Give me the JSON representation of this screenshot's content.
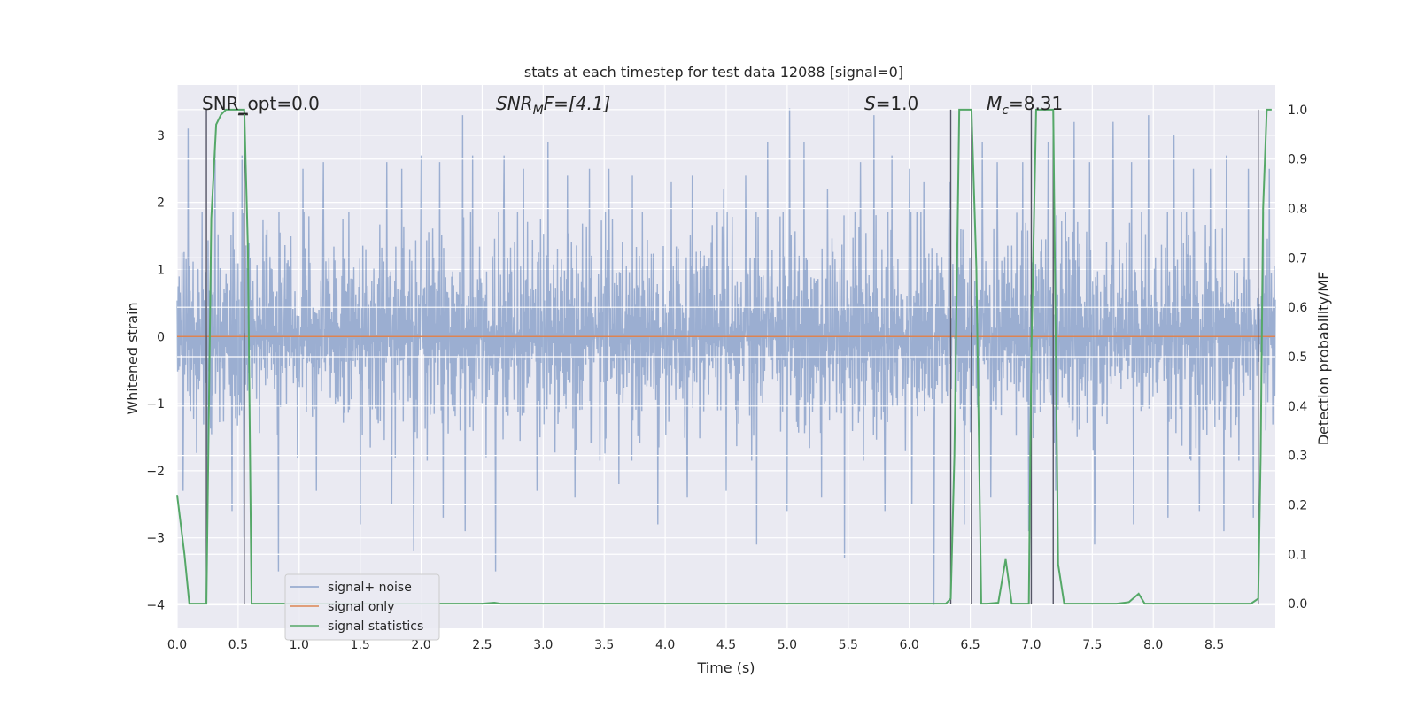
{
  "chart_data": {
    "type": "line",
    "title": "stats at each timestep for test data 12088 [signal=0]",
    "xlabel": "Time (s)",
    "ylabel_left": "Whitened strain",
    "ylabel_right": "Detection probability/MF",
    "xlim": [
      0.0,
      9.0
    ],
    "ylim_left": [
      -4.35,
      3.75
    ],
    "ylim_right": [
      -0.05,
      1.05
    ],
    "x_ticks": [
      "0.0",
      "0.5",
      "1.0",
      "1.5",
      "2.0",
      "2.5",
      "3.0",
      "3.5",
      "4.0",
      "4.5",
      "5.0",
      "5.5",
      "6.0",
      "6.5",
      "7.0",
      "7.5",
      "8.0",
      "8.5"
    ],
    "y_ticks_left": [
      "−4",
      "−3",
      "−2",
      "−1",
      "0",
      "1",
      "2",
      "3"
    ],
    "y_ticks_right": [
      "0.0",
      "0.1",
      "0.2",
      "0.3",
      "0.4",
      "0.5",
      "0.6",
      "0.7",
      "0.8",
      "0.9",
      "1.0"
    ],
    "grid": true,
    "legend_position": "lower-left",
    "annotations": {
      "snr_opt": "SNR_opt=0.0",
      "snr_mf_main": "SNR",
      "snr_mf_sub": "M",
      "snr_mf_rest": "F=[4.1]",
      "s_main": "S",
      "s_rest": "=1.0",
      "mc_main": "M",
      "mc_sub": "c",
      "mc_rest": "=8.31"
    },
    "series": [
      {
        "name": "signal+ noise",
        "color": "#4c72b0",
        "note_values": "dense whitened noise, amplitude roughly within ±2 with spikes to ±3.4"
      },
      {
        "name": "signal only",
        "color": "#dd8452",
        "values_constant": 0.0
      },
      {
        "name": "signal statistics",
        "color": "#55a868",
        "x": [
          0.0,
          0.06,
          0.1,
          0.2,
          0.24,
          0.28,
          0.32,
          0.36,
          0.4,
          0.5,
          0.55,
          0.58,
          0.61,
          0.65,
          0.8,
          1.0,
          2.0,
          2.5,
          2.6,
          2.65,
          2.7,
          3.0,
          4.0,
          5.0,
          6.0,
          6.3,
          6.34,
          6.37,
          6.41,
          6.44,
          6.51,
          6.55,
          6.59,
          6.64,
          6.73,
          6.79,
          6.84,
          6.89,
          6.93,
          6.98,
          7.0,
          7.04,
          7.07,
          7.18,
          7.22,
          7.27,
          7.32,
          7.4,
          7.5,
          7.7,
          7.8,
          7.88,
          7.93,
          7.98,
          8.1,
          8.5,
          8.8,
          8.86,
          8.88,
          8.9,
          8.93,
          8.97
        ],
        "values": [
          0.22,
          0.1,
          0.0,
          0.0,
          0.0,
          0.78,
          0.97,
          0.99,
          1.0,
          1.0,
          1.0,
          0.72,
          0.0,
          0.0,
          0.0,
          0.0,
          0.0,
          0.0,
          0.002,
          0.0,
          0.0,
          0.0,
          0.0,
          0.0,
          0.0,
          0.0,
          0.01,
          0.3,
          1.0,
          1.0,
          1.0,
          0.68,
          0.0,
          0.0,
          0.002,
          0.09,
          0.0,
          0.0,
          0.0,
          0.0,
          0.5,
          1.0,
          1.0,
          1.0,
          0.08,
          0.0,
          0.0,
          0.0,
          0.0,
          0.0,
          0.003,
          0.02,
          0.0,
          0.0,
          0.0,
          0.0,
          0.0,
          0.01,
          0.3,
          0.8,
          1.0,
          1.0
        ]
      }
    ],
    "vertical_markers": [
      0.24,
      0.55,
      6.34,
      6.51,
      7.0,
      7.18,
      8.86
    ],
    "noise_peaks": [
      {
        "x": 0.09,
        "v": 3.1
      },
      {
        "x": 0.31,
        "v": 2.9
      },
      {
        "x": 0.53,
        "v": 2.7
      },
      {
        "x": 1.03,
        "v": 2.5
      },
      {
        "x": 1.2,
        "v": 2.6
      },
      {
        "x": 1.5,
        "v": 2.5
      },
      {
        "x": 1.72,
        "v": 2.6
      },
      {
        "x": 1.84,
        "v": 2.5
      },
      {
        "x": 2.0,
        "v": 2.7
      },
      {
        "x": 2.15,
        "v": 2.6
      },
      {
        "x": 2.34,
        "v": 3.3
      },
      {
        "x": 2.42,
        "v": 2.7
      },
      {
        "x": 2.68,
        "v": 2.7
      },
      {
        "x": 2.84,
        "v": 2.5
      },
      {
        "x": 3.04,
        "v": 2.9
      },
      {
        "x": 3.2,
        "v": 2.4
      },
      {
        "x": 3.38,
        "v": 2.5
      },
      {
        "x": 3.54,
        "v": 2.5
      },
      {
        "x": 3.73,
        "v": 2.4
      },
      {
        "x": 4.05,
        "v": 2.3
      },
      {
        "x": 4.22,
        "v": 2.4
      },
      {
        "x": 4.48,
        "v": 2.2
      },
      {
        "x": 4.66,
        "v": 2.4
      },
      {
        "x": 4.84,
        "v": 2.9
      },
      {
        "x": 5.02,
        "v": 3.4
      },
      {
        "x": 5.14,
        "v": 2.9
      },
      {
        "x": 5.33,
        "v": 2.2
      },
      {
        "x": 5.6,
        "v": 2.6
      },
      {
        "x": 5.71,
        "v": 3.3
      },
      {
        "x": 5.86,
        "v": 2.7
      },
      {
        "x": 6.0,
        "v": 2.5
      },
      {
        "x": 6.12,
        "v": 2.3
      },
      {
        "x": 6.33,
        "v": 2.3
      },
      {
        "x": 6.6,
        "v": 2.9
      },
      {
        "x": 6.72,
        "v": 2.6
      },
      {
        "x": 6.93,
        "v": 2.6
      },
      {
        "x": 7.14,
        "v": 2.9
      },
      {
        "x": 7.35,
        "v": 3.2
      },
      {
        "x": 7.48,
        "v": 2.6
      },
      {
        "x": 7.67,
        "v": 3.2
      },
      {
        "x": 7.82,
        "v": 2.6
      },
      {
        "x": 7.96,
        "v": 3.3
      },
      {
        "x": 8.17,
        "v": 3.0
      },
      {
        "x": 8.33,
        "v": 2.5
      },
      {
        "x": 8.47,
        "v": 2.5
      },
      {
        "x": 8.6,
        "v": 2.7
      },
      {
        "x": 8.78,
        "v": 2.5
      },
      {
        "x": 8.95,
        "v": 2.5
      }
    ],
    "noise_troughs": [
      {
        "x": 0.05,
        "v": -2.3
      },
      {
        "x": 0.25,
        "v": -2.5
      },
      {
        "x": 0.45,
        "v": -2.6
      },
      {
        "x": 0.55,
        "v": -3.0
      },
      {
        "x": 0.83,
        "v": -3.5
      },
      {
        "x": 1.14,
        "v": -2.3
      },
      {
        "x": 1.5,
        "v": -2.8
      },
      {
        "x": 1.76,
        "v": -2.5
      },
      {
        "x": 1.94,
        "v": -3.2
      },
      {
        "x": 2.18,
        "v": -2.7
      },
      {
        "x": 2.36,
        "v": -2.9
      },
      {
        "x": 2.61,
        "v": -3.5
      },
      {
        "x": 2.95,
        "v": -2.3
      },
      {
        "x": 3.26,
        "v": -2.4
      },
      {
        "x": 3.62,
        "v": -2.2
      },
      {
        "x": 3.94,
        "v": -2.8
      },
      {
        "x": 4.18,
        "v": -2.4
      },
      {
        "x": 4.5,
        "v": -2.3
      },
      {
        "x": 4.75,
        "v": -3.1
      },
      {
        "x": 5.0,
        "v": -2.6
      },
      {
        "x": 5.28,
        "v": -2.4
      },
      {
        "x": 5.47,
        "v": -3.3
      },
      {
        "x": 5.8,
        "v": -2.6
      },
      {
        "x": 6.02,
        "v": -2.5
      },
      {
        "x": 6.2,
        "v": -4.0
      },
      {
        "x": 6.45,
        "v": -2.8
      },
      {
        "x": 6.67,
        "v": -2.4
      },
      {
        "x": 6.98,
        "v": -2.9
      },
      {
        "x": 7.2,
        "v": -2.3
      },
      {
        "x": 7.52,
        "v": -3.1
      },
      {
        "x": 7.84,
        "v": -2.8
      },
      {
        "x": 8.12,
        "v": -2.7
      },
      {
        "x": 8.38,
        "v": -2.6
      },
      {
        "x": 8.58,
        "v": -2.9
      },
      {
        "x": 8.82,
        "v": -2.7
      }
    ]
  }
}
